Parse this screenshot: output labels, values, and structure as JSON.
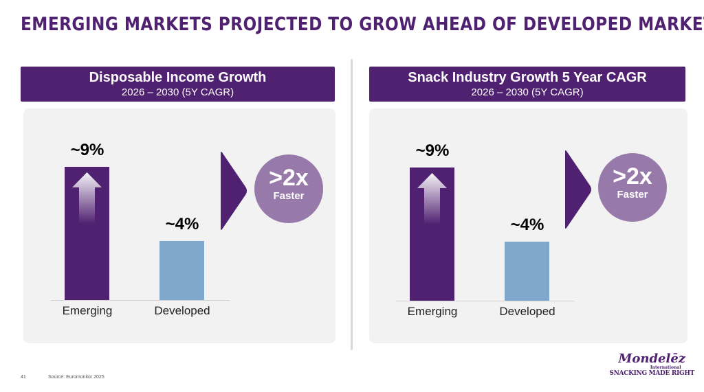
{
  "title": "EMERGING MARKETS PROJECTED TO GROW AHEAD OF DEVELOPED MARKETS",
  "colors": {
    "brand_purple": "#4f2170",
    "developed_blue": "#7fa7cc",
    "circle_purple": "#977aa9",
    "panel_gray": "#f2f2f2"
  },
  "chart_data": [
    {
      "type": "bar",
      "title": "Disposable Income Growth",
      "subtitle": "2026 – 2030 (5Y CAGR)",
      "categories": [
        "Emerging",
        "Developed"
      ],
      "values": [
        9,
        4
      ],
      "data_labels": [
        "~9%",
        "~4%"
      ],
      "callout": {
        "value": ">2x",
        "label": "Faster"
      },
      "colors": [
        "#4f2170",
        "#7fa7cc"
      ],
      "grid": false
    },
    {
      "type": "bar",
      "title": "Snack Industry Growth 5 Year CAGR",
      "subtitle": "2026 – 2030 (5Y CAGR)",
      "categories": [
        "Emerging",
        "Developed"
      ],
      "values": [
        9,
        4
      ],
      "data_labels": [
        "~9%",
        "~4%"
      ],
      "callout": {
        "value": ">2x",
        "label": "Faster"
      },
      "colors": [
        "#4f2170",
        "#7fa7cc"
      ],
      "grid": false
    }
  ],
  "footer": {
    "page": "41",
    "source": "Source: Euromonitor 2025"
  },
  "logo": {
    "name": "Mondelēz",
    "sub": "International",
    "tagline": "SNACKING MADE RIGHT"
  }
}
